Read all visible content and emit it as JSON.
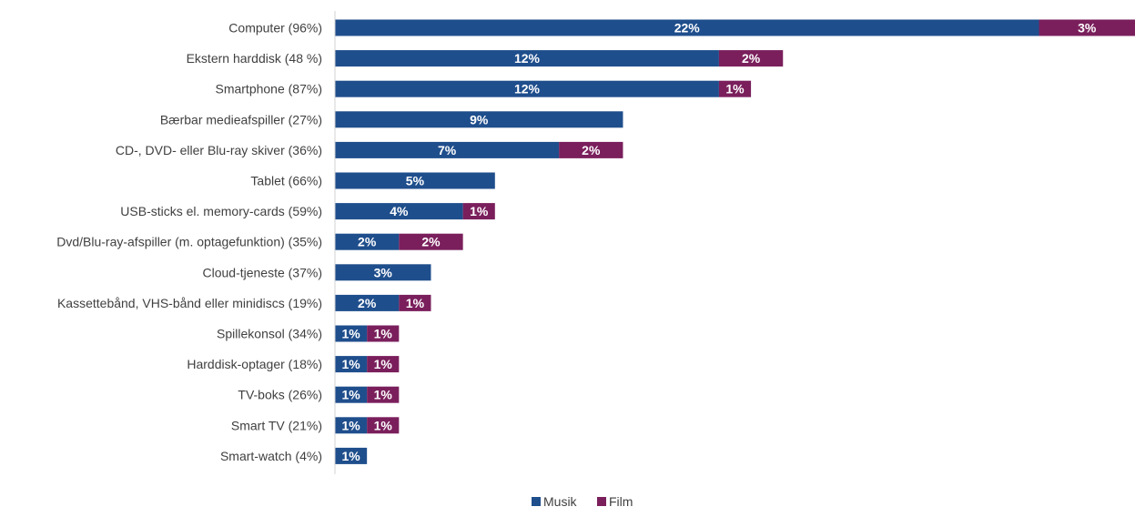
{
  "chart_data": {
    "type": "bar",
    "orientation": "horizontal",
    "stacked": true,
    "categories": [
      "Computer (96%)",
      "Ekstern harddisk (48 %)",
      "Smartphone (87%)",
      "Bærbar medieafspiller (27%)",
      "CD-, DVD- eller Blu-ray skiver (36%)",
      "Tablet (66%)",
      "USB-sticks el. memory-cards (59%)",
      "Dvd/Blu-ray-afspiller (m. optagefunktion) (35%)",
      "Cloud-tjeneste (37%)",
      "Kassettebånd, VHS-bånd eller minidiscs (19%)",
      "Spillekonsol (34%)",
      "Harddisk-optager (18%)",
      "TV-boks (26%)",
      "Smart TV (21%)",
      "Smart-watch (4%)"
    ],
    "series": [
      {
        "name": "Musik",
        "color": "#1f4e8c",
        "values": [
          22,
          12,
          12,
          9,
          7,
          5,
          4,
          2,
          3,
          2,
          1,
          1,
          1,
          1,
          1
        ],
        "labels": [
          "22%",
          "12%",
          "12%",
          "9%",
          "7%",
          "5%",
          "4%",
          "2%",
          "3%",
          "2%",
          "1%",
          "1%",
          "1%",
          "1%",
          "1%"
        ]
      },
      {
        "name": "Film",
        "color": "#7a1f5c",
        "values": [
          3,
          2,
          1,
          0,
          2,
          0,
          1,
          2,
          0,
          1,
          1,
          1,
          1,
          1,
          0
        ],
        "labels": [
          "3%",
          "2%",
          "1%",
          "",
          "2%",
          "",
          "1%",
          "2%",
          "",
          "1%",
          "1%",
          "1%",
          "1%",
          "1%",
          ""
        ]
      }
    ],
    "xlim": [
      0,
      25
    ],
    "grid": false,
    "axis_line": "left",
    "legend": "bottom"
  }
}
